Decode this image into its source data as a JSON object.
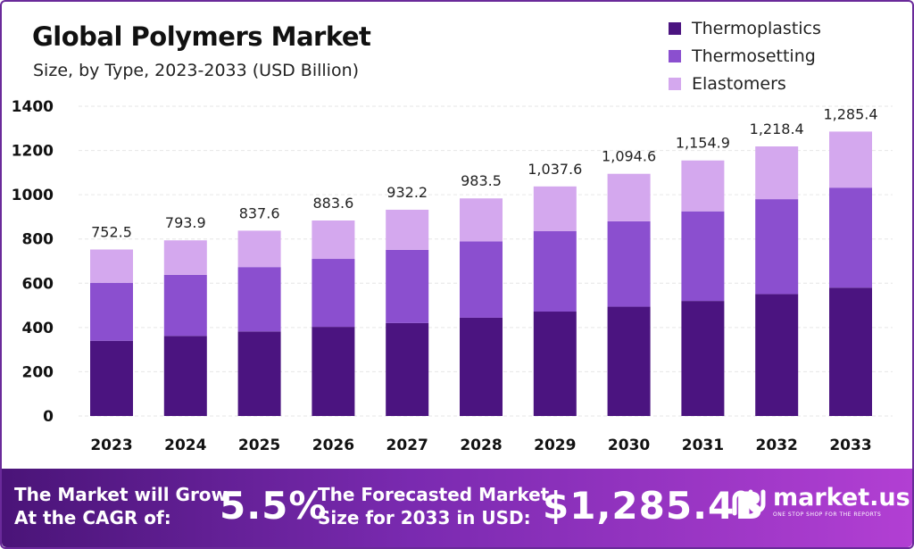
{
  "chart_data": {
    "type": "bar",
    "stacked": true,
    "title": "Global Polymers Market",
    "subtitle": "Size, by Type, 2023-2033 (USD Billion)",
    "categories": [
      "2023",
      "2024",
      "2025",
      "2026",
      "2027",
      "2028",
      "2029",
      "2030",
      "2031",
      "2032",
      "2033"
    ],
    "series": [
      {
        "name": "Thermoplastics",
        "color": "#4b1480",
        "values": [
          340,
          362,
          382,
          403,
          420,
          444,
          472,
          494,
          520,
          551,
          580
        ]
      },
      {
        "name": "Thermosetting",
        "color": "#8b4fcf",
        "values": [
          262,
          276,
          291,
          307,
          331,
          345,
          364,
          386,
          405,
          429,
          452
        ]
      },
      {
        "name": "Elastomers",
        "color": "#d4a8ee",
        "values": [
          150.5,
          155.9,
          164.6,
          173.6,
          181.2,
          194.5,
          201.6,
          214.6,
          229.9,
          238.4,
          253.4
        ]
      }
    ],
    "totals": [
      752.5,
      793.9,
      837.6,
      883.6,
      932.2,
      983.5,
      1037.6,
      1094.6,
      1154.9,
      1218.4,
      1285.4
    ],
    "total_labels": [
      "752.5",
      "793.9",
      "837.6",
      "883.6",
      "932.2",
      "983.5",
      "1,037.6",
      "1,094.6",
      "1,154.9",
      "1,218.4",
      "1,285.4"
    ],
    "ylim": [
      0,
      1400
    ],
    "yticks": [
      "0",
      "200",
      "400",
      "600",
      "800",
      "1000",
      "1200",
      "1400"
    ],
    "grid": true,
    "legend_position": "top-right",
    "xlabel": "",
    "ylabel": ""
  },
  "banner": {
    "cagr_line1": "The Market will Grow",
    "cagr_line2": "At the CAGR of:",
    "cagr_value": "5.5%",
    "forecast_line1": "The Forecasted Market",
    "forecast_line2": "Size for 2033 in USD:",
    "forecast_value": "$1,285.4B",
    "logo_name": "market.us",
    "logo_tagline": "ONE STOP SHOP FOR THE REPORTS"
  }
}
